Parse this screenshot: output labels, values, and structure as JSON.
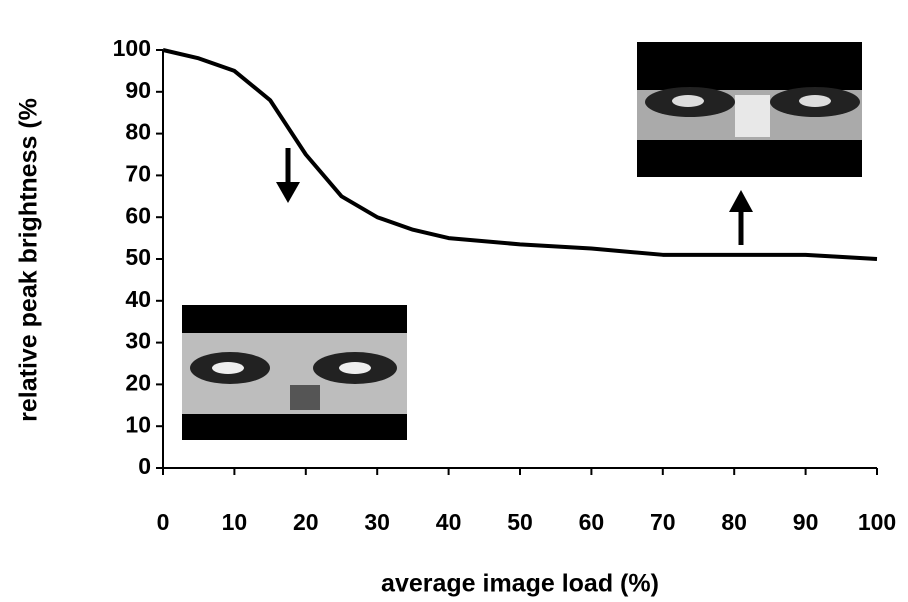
{
  "chart_data": {
    "type": "line",
    "x_label": "average image load (%)",
    "y_label": "relative peak brightness (%",
    "x": [
      0,
      5,
      10,
      15,
      20,
      25,
      30,
      35,
      40,
      50,
      60,
      70,
      80,
      90,
      100
    ],
    "series": [
      {
        "color": "#000000",
        "values": [
          100,
          98,
          95,
          88,
          75,
          65,
          60,
          57,
          55,
          53.5,
          52.5,
          51,
          51,
          51,
          50
        ]
      }
    ],
    "xlim": [
      0,
      100
    ],
    "xticks": [
      0,
      10,
      20,
      30,
      40,
      50,
      60,
      70,
      80,
      90,
      100
    ],
    "ylim": [
      0,
      100
    ],
    "yticks": [
      0,
      10,
      20,
      30,
      40,
      50,
      60,
      70,
      80,
      90,
      100
    ]
  }
}
